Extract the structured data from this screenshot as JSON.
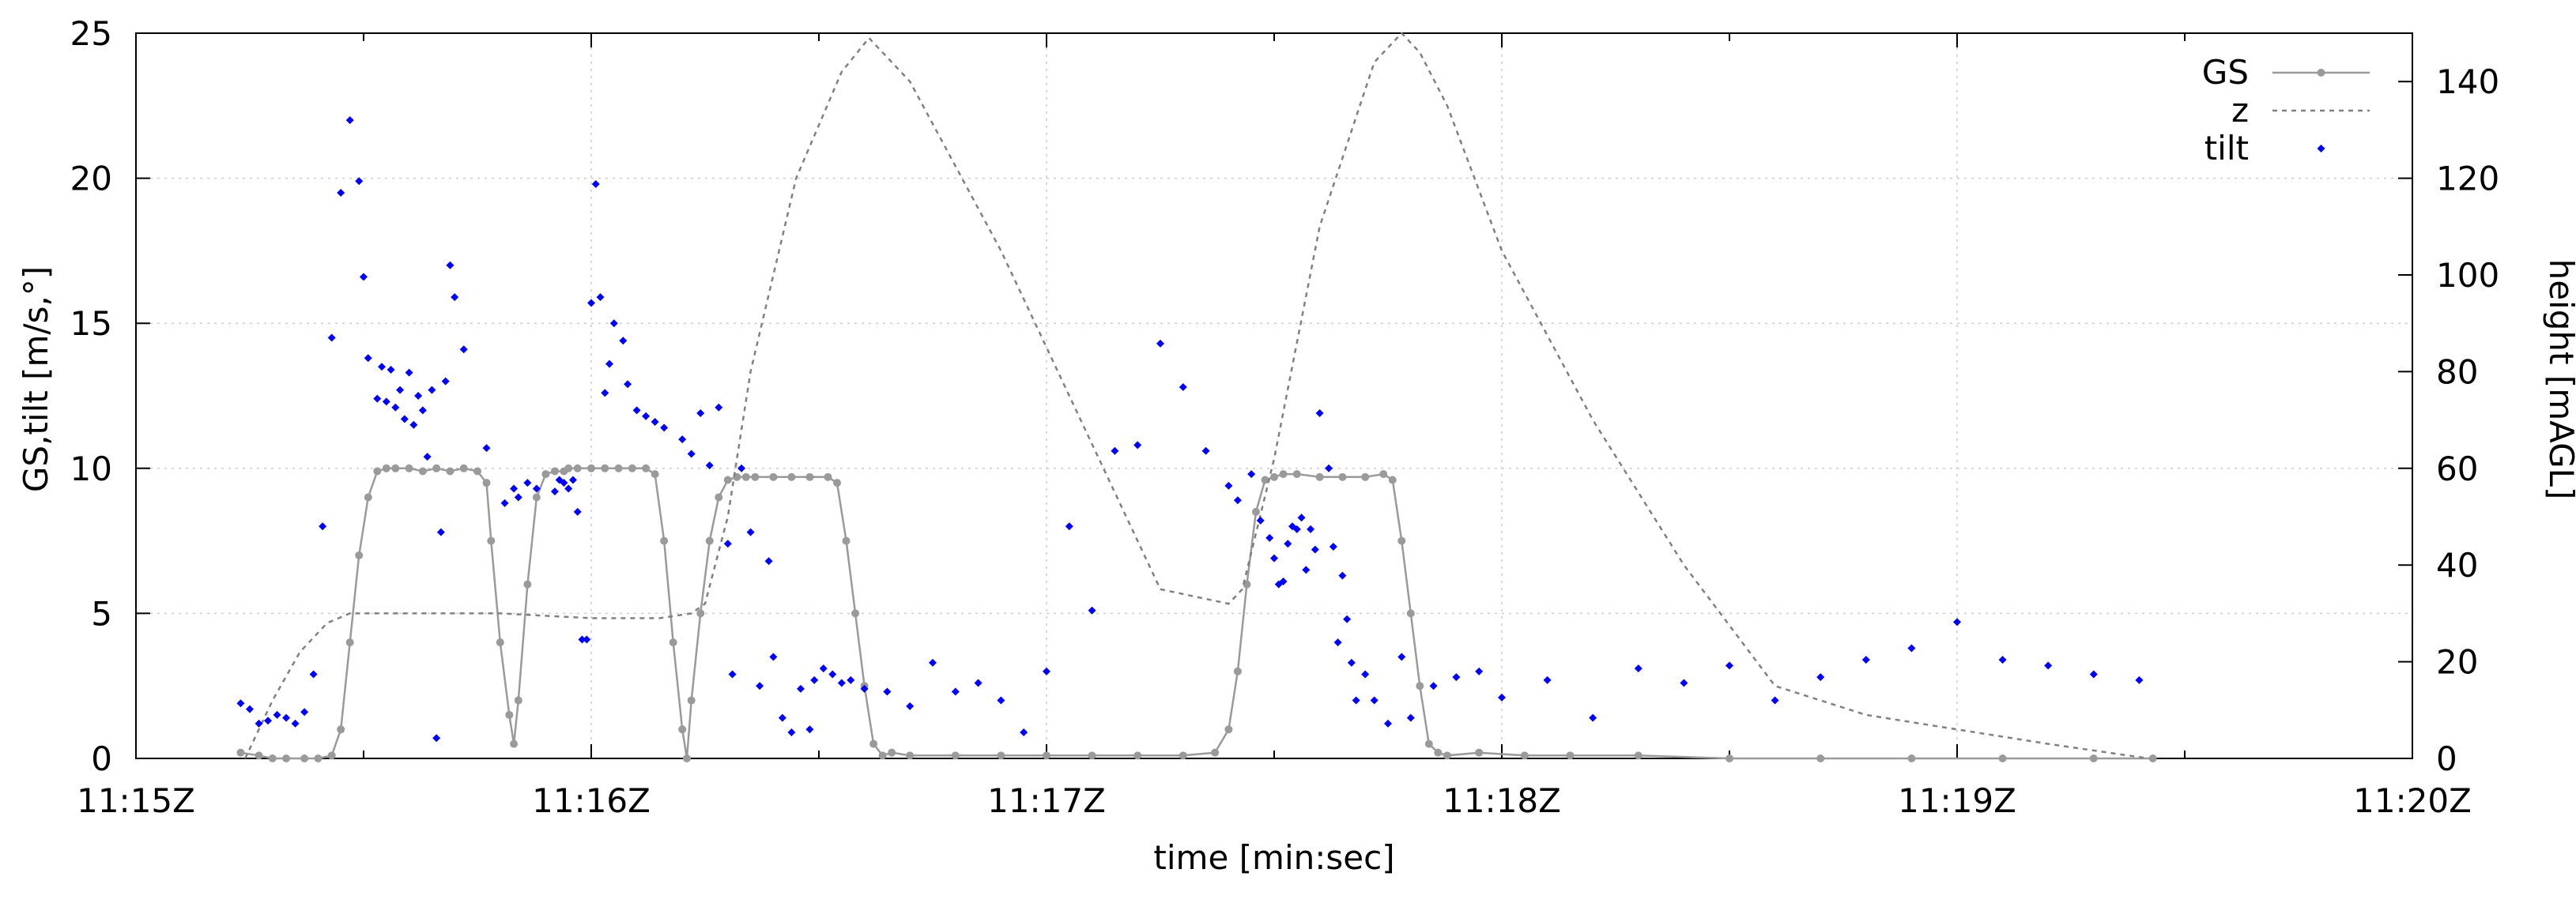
{
  "chart_data": {
    "type": "line",
    "xlabel": "time [min:sec]",
    "ylabel_left": "GS,tilt [m/s,°]",
    "ylabel_right": "height [mAGL]",
    "x_unit": "minutes after 11:15Z",
    "xlim": [
      0,
      5
    ],
    "x_ticks": [
      0,
      1,
      2,
      3,
      4,
      5
    ],
    "x_tick_labels": [
      "11:15Z",
      "11:16Z",
      "11:17Z",
      "11:18Z",
      "11:19Z",
      "11:20Z"
    ],
    "ylim_left": [
      0,
      25
    ],
    "y_ticks_left": [
      0,
      5,
      10,
      15,
      20,
      25
    ],
    "ylim_right": [
      0,
      150
    ],
    "y_ticks_right": [
      0,
      20,
      40,
      60,
      80,
      100,
      120,
      140
    ],
    "grid": true,
    "legend_position": "top-right",
    "colors": {
      "GS": "#9a9a9a",
      "z": "#808080",
      "tilt": "#0000ff",
      "axis": "#000000",
      "grid": "#cccccc"
    },
    "series": [
      {
        "name": "GS",
        "axis": "left",
        "style": "line-points",
        "x": [
          0.23,
          0.27,
          0.3,
          0.33,
          0.37,
          0.4,
          0.43,
          0.45,
          0.47,
          0.49,
          0.51,
          0.53,
          0.55,
          0.57,
          0.6,
          0.63,
          0.66,
          0.69,
          0.72,
          0.75,
          0.77,
          0.78,
          0.8,
          0.82,
          0.83,
          0.84,
          0.86,
          0.88,
          0.9,
          0.92,
          0.94,
          0.95,
          0.97,
          1.0,
          1.03,
          1.06,
          1.09,
          1.12,
          1.14,
          1.16,
          1.18,
          1.2,
          1.21,
          1.22,
          1.24,
          1.26,
          1.28,
          1.3,
          1.32,
          1.34,
          1.36,
          1.4,
          1.44,
          1.48,
          1.52,
          1.54,
          1.56,
          1.58,
          1.6,
          1.62,
          1.64,
          1.66,
          1.7,
          1.8,
          1.9,
          2.0,
          2.1,
          2.2,
          2.3,
          2.37,
          2.4,
          2.42,
          2.44,
          2.46,
          2.48,
          2.5,
          2.52,
          2.55,
          2.6,
          2.65,
          2.7,
          2.74,
          2.76,
          2.78,
          2.8,
          2.82,
          2.84,
          2.86,
          2.88,
          2.95,
          3.05,
          3.15,
          3.3,
          3.5,
          3.7,
          3.9,
          4.1,
          4.3,
          4.43
        ],
        "y": [
          0.2,
          0.1,
          0.0,
          0.0,
          0.0,
          0.0,
          0.1,
          1.0,
          4.0,
          7.0,
          9.0,
          9.9,
          10.0,
          10.0,
          10.0,
          9.9,
          10.0,
          9.9,
          10.0,
          9.9,
          9.5,
          7.5,
          4.0,
          1.5,
          0.5,
          2.0,
          6.0,
          9.0,
          9.8,
          9.9,
          9.9,
          10.0,
          10.0,
          10.0,
          10.0,
          10.0,
          10.0,
          10.0,
          9.8,
          7.5,
          4.0,
          1.0,
          0.0,
          2.0,
          5.0,
          7.5,
          9.0,
          9.6,
          9.7,
          9.7,
          9.7,
          9.7,
          9.7,
          9.7,
          9.7,
          9.5,
          7.5,
          5.0,
          2.5,
          0.5,
          0.1,
          0.2,
          0.1,
          0.1,
          0.1,
          0.1,
          0.1,
          0.1,
          0.1,
          0.2,
          1.0,
          3.0,
          6.0,
          8.5,
          9.6,
          9.7,
          9.8,
          9.8,
          9.7,
          9.7,
          9.7,
          9.8,
          9.6,
          7.5,
          5.0,
          2.5,
          0.5,
          0.2,
          0.1,
          0.2,
          0.1,
          0.1,
          0.1,
          0.0,
          0.0,
          0.0,
          0.0,
          0.0,
          0.0
        ]
      },
      {
        "name": "z",
        "axis": "right",
        "style": "dashed",
        "x": [
          0.24,
          0.3,
          0.36,
          0.42,
          0.47,
          0.55,
          0.7,
          0.8,
          1.0,
          1.15,
          1.22,
          1.25,
          1.3,
          1.35,
          1.45,
          1.55,
          1.61,
          1.7,
          1.9,
          2.1,
          2.25,
          2.4,
          2.43,
          2.5,
          2.6,
          2.72,
          2.78,
          2.82,
          2.88,
          3.0,
          3.2,
          3.4,
          3.6,
          3.8,
          4.0,
          4.2,
          4.42
        ],
        "y": [
          0,
          12,
          22,
          28,
          30,
          30,
          30,
          30,
          29,
          29,
          30,
          32,
          50,
          80,
          120,
          142,
          149,
          140,
          105,
          65,
          35,
          32,
          35,
          62,
          110,
          144,
          150,
          146,
          135,
          105,
          70,
          40,
          15,
          9,
          6,
          3,
          0
        ]
      },
      {
        "name": "tilt",
        "axis": "left",
        "style": "points",
        "x": [
          0.23,
          0.25,
          0.27,
          0.29,
          0.31,
          0.33,
          0.35,
          0.37,
          0.39,
          0.41,
          0.43,
          0.45,
          0.47,
          0.49,
          0.5,
          0.51,
          0.53,
          0.54,
          0.55,
          0.56,
          0.57,
          0.58,
          0.59,
          0.6,
          0.61,
          0.62,
          0.63,
          0.64,
          0.65,
          0.66,
          0.67,
          0.68,
          0.69,
          0.7,
          0.72,
          0.77,
          0.81,
          0.83,
          0.84,
          0.86,
          0.88,
          0.92,
          0.93,
          0.94,
          0.95,
          0.96,
          0.97,
          0.98,
          0.99,
          1.0,
          1.01,
          1.02,
          1.03,
          1.04,
          1.05,
          1.07,
          1.08,
          1.1,
          1.12,
          1.14,
          1.16,
          1.2,
          1.22,
          1.24,
          1.26,
          1.28,
          1.3,
          1.31,
          1.33,
          1.35,
          1.37,
          1.39,
          1.4,
          1.42,
          1.44,
          1.46,
          1.48,
          1.49,
          1.51,
          1.53,
          1.55,
          1.57,
          1.6,
          1.65,
          1.7,
          1.75,
          1.8,
          1.85,
          1.9,
          1.95,
          2.0,
          2.05,
          2.1,
          2.15,
          2.2,
          2.25,
          2.3,
          2.35,
          2.4,
          2.42,
          2.45,
          2.47,
          2.49,
          2.5,
          2.51,
          2.52,
          2.53,
          2.54,
          2.55,
          2.56,
          2.57,
          2.58,
          2.59,
          2.6,
          2.62,
          2.63,
          2.64,
          2.65,
          2.66,
          2.67,
          2.68,
          2.7,
          2.72,
          2.75,
          2.78,
          2.8,
          2.85,
          2.9,
          2.95,
          3.0,
          3.1,
          3.2,
          3.3,
          3.4,
          3.5,
          3.6,
          3.7,
          3.8,
          3.9,
          4.0,
          4.1,
          4.2,
          4.3,
          4.4
        ],
        "y": [
          1.9,
          1.7,
          1.2,
          1.3,
          1.5,
          1.4,
          1.2,
          1.6,
          2.9,
          8.0,
          14.5,
          19.5,
          22.0,
          19.9,
          16.6,
          13.8,
          12.4,
          13.5,
          12.3,
          13.4,
          12.1,
          12.7,
          11.7,
          13.3,
          11.5,
          12.5,
          12.0,
          10.4,
          12.7,
          0.7,
          7.8,
          13.0,
          17.0,
          15.9,
          14.1,
          10.7,
          8.8,
          9.3,
          9.0,
          9.5,
          9.3,
          9.2,
          9.6,
          9.5,
          9.3,
          9.6,
          8.5,
          4.1,
          4.1,
          15.7,
          19.8,
          15.9,
          12.6,
          13.6,
          15.0,
          14.4,
          12.9,
          12.0,
          11.8,
          11.6,
          11.4,
          11.0,
          10.5,
          11.9,
          10.1,
          12.1,
          7.4,
          2.9,
          10.0,
          7.8,
          2.5,
          6.8,
          3.5,
          1.4,
          0.9,
          2.4,
          1.0,
          2.7,
          3.1,
          2.9,
          2.6,
          2.7,
          2.4,
          2.3,
          1.8,
          3.3,
          2.3,
          2.6,
          2.0,
          0.9,
          3.0,
          8.0,
          5.1,
          10.6,
          10.8,
          14.3,
          12.8,
          10.6,
          9.4,
          8.9,
          9.8,
          8.2,
          7.6,
          6.9,
          6.0,
          6.1,
          7.4,
          8.0,
          7.9,
          8.3,
          6.5,
          7.9,
          7.2,
          11.9,
          10.0,
          7.3,
          4.0,
          6.3,
          4.8,
          3.3,
          2.0,
          2.9,
          2.0,
          1.2,
          3.5,
          1.4,
          2.5,
          2.8,
          3.0,
          2.1,
          2.7,
          1.4,
          3.1,
          2.6,
          3.2,
          2.0,
          2.8,
          3.4,
          3.8,
          4.7,
          3.4,
          3.2,
          2.9,
          2.7
        ]
      }
    ]
  }
}
